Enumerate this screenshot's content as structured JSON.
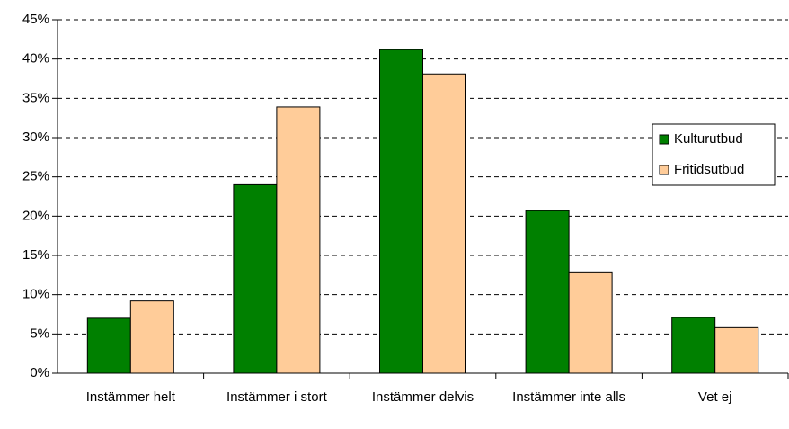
{
  "chart_data": {
    "type": "bar",
    "categories": [
      "Instämmer helt",
      "Instämmer i stort",
      "Instämmer delvis",
      "Instämmer inte alls",
      "Vet ej"
    ],
    "series": [
      {
        "name": "Kulturutbud",
        "color": "#008000",
        "values": [
          7.0,
          24.0,
          41.2,
          20.7,
          7.1
        ]
      },
      {
        "name": "Fritidsutbud",
        "color": "#ffcc99",
        "values": [
          9.2,
          33.9,
          38.1,
          12.9,
          5.8
        ]
      }
    ],
    "ylim": [
      0,
      45
    ],
    "yticks": [
      {
        "value": 0,
        "label": "0%"
      },
      {
        "value": 5,
        "label": "5%"
      },
      {
        "value": 10,
        "label": "10%"
      },
      {
        "value": 15,
        "label": "15%"
      },
      {
        "value": 20,
        "label": "20%"
      },
      {
        "value": 25,
        "label": "25%"
      },
      {
        "value": 30,
        "label": "30%"
      },
      {
        "value": 35,
        "label": "35%"
      },
      {
        "value": 40,
        "label": "40%"
      },
      {
        "value": 45,
        "label": "45%"
      }
    ],
    "grid": true,
    "legend": "right"
  }
}
